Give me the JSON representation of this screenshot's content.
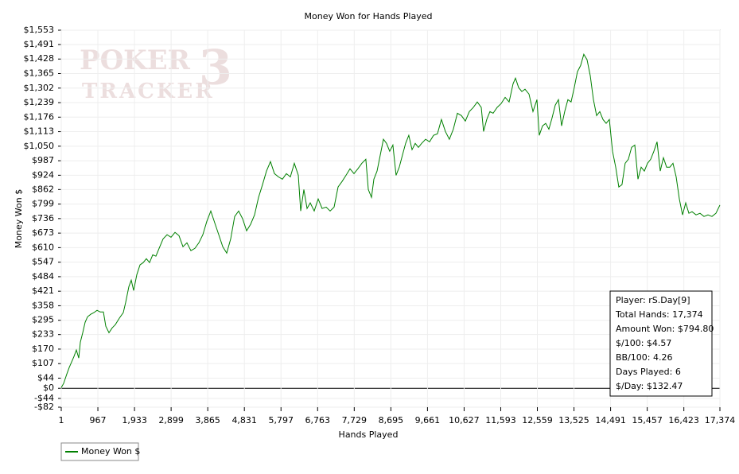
{
  "chart_data": {
    "type": "line",
    "title": "Money Won for Hands Played",
    "xlabel": "Hands Played",
    "ylabel": "Money Won $",
    "watermark": {
      "line1": "POKER",
      "line2": "TRACKER",
      "mark": "3"
    },
    "stats_box": [
      "Player: rS.Day[9]",
      "Total Hands: 17,374",
      "Amount Won: $794.80",
      "$/100: $4.57",
      "BB/100: 4.26",
      "Days Played: 6",
      "$/Day: $132.47"
    ],
    "xlim": [
      1,
      17374
    ],
    "ylim": [
      -82,
      1553
    ],
    "grid": true,
    "legend": "bottom-left",
    "xticks": [
      1,
      967,
      {
        "value": 1933,
        "label": "1,933"
      },
      {
        "value": 2899,
        "label": "2,899"
      },
      {
        "value": 3865,
        "label": "3,865"
      },
      {
        "value": 4831,
        "label": "4,831"
      },
      {
        "value": 5797,
        "label": "5,797"
      },
      {
        "value": 6763,
        "label": "6,763"
      },
      {
        "value": 7729,
        "label": "7,729"
      },
      {
        "value": 8695,
        "label": "8,695"
      },
      {
        "value": 9661,
        "label": "9,661"
      },
      {
        "value": 10627,
        "label": "10,627"
      },
      {
        "value": 11593,
        "label": "11,593"
      },
      {
        "value": 12559,
        "label": "12,559"
      },
      {
        "value": 13525,
        "label": "13,525"
      },
      {
        "value": 14491,
        "label": "14,491"
      },
      {
        "value": 15457,
        "label": "15,457"
      },
      {
        "value": 16423,
        "label": "16,423"
      },
      {
        "value": 17374,
        "label": "17,374"
      }
    ],
    "yticks": [
      {
        "value": 1553,
        "label": "$1,553"
      },
      {
        "value": 1491,
        "label": "$1,491"
      },
      {
        "value": 1428,
        "label": "$1,428"
      },
      {
        "value": 1365,
        "label": "$1,365"
      },
      {
        "value": 1302,
        "label": "$1,302"
      },
      {
        "value": 1239,
        "label": "$1,239"
      },
      {
        "value": 1176,
        "label": "$1,176"
      },
      {
        "value": 1113,
        "label": "$1,113"
      },
      {
        "value": 1050,
        "label": "$1,050"
      },
      {
        "value": 987,
        "label": "$987"
      },
      {
        "value": 924,
        "label": "$924"
      },
      {
        "value": 862,
        "label": "$862"
      },
      {
        "value": 799,
        "label": "$799"
      },
      {
        "value": 736,
        "label": "$736"
      },
      {
        "value": 673,
        "label": "$673"
      },
      {
        "value": 610,
        "label": "$610"
      },
      {
        "value": 547,
        "label": "$547"
      },
      {
        "value": 484,
        "label": "$484"
      },
      {
        "value": 421,
        "label": "$421"
      },
      {
        "value": 358,
        "label": "$358"
      },
      {
        "value": 295,
        "label": "$295"
      },
      {
        "value": 233,
        "label": "$233"
      },
      {
        "value": 170,
        "label": "$170"
      },
      {
        "value": 107,
        "label": "$107"
      },
      {
        "value": 44,
        "label": "$44"
      },
      {
        "value": 0,
        "label": "$0"
      },
      {
        "value": -44,
        "label": "-$44"
      },
      {
        "value": -82,
        "label": "-$82"
      }
    ],
    "x": [
      1,
      64,
      148,
      211,
      274,
      337,
      400,
      463,
      505,
      567,
      630,
      693,
      777,
      861,
      945,
      1029,
      1113,
      1176,
      1260,
      1344,
      1428,
      1533,
      1638,
      1700,
      1784,
      1847,
      1910,
      1994,
      2078,
      2162,
      2246,
      2330,
      2414,
      2498,
      2582,
      2686,
      2791,
      2896,
      3001,
      3106,
      3211,
      3316,
      3421,
      3526,
      3631,
      3735,
      3840,
      3945,
      4050,
      4155,
      4260,
      4365,
      4470,
      4575,
      4680,
      4785,
      4889,
      4994,
      5099,
      5204,
      5309,
      5414,
      5519,
      5624,
      5729,
      5834,
      5938,
      6043,
      6148,
      6253,
      6316,
      6400,
      6484,
      6568,
      6673,
      6778,
      6882,
      6987,
      7092,
      7197,
      7302,
      7407,
      7512,
      7617,
      7722,
      7826,
      7931,
      8036,
      8099,
      8183,
      8246,
      8330,
      8414,
      8498,
      8581,
      8665,
      8749,
      8833,
      8917,
      9001,
      9085,
      9169,
      9253,
      9337,
      9421,
      9505,
      9610,
      9715,
      9820,
      9924,
      10029,
      10134,
      10239,
      10344,
      10449,
      10554,
      10659,
      10764,
      10869,
      10974,
      11079,
      11141,
      11225,
      11309,
      11393,
      11498,
      11603,
      11708,
      11813,
      11918,
      11981,
      12065,
      12149,
      12233,
      12338,
      12443,
      12548,
      12610,
      12694,
      12778,
      12862,
      12946,
      13030,
      13114,
      13198,
      13281,
      13365,
      13449,
      13533,
      13617,
      13701,
      13785,
      13869,
      13953,
      14037,
      14121,
      14205,
      14289,
      14373,
      14457,
      14541,
      14625,
      14708,
      14792,
      14876,
      14960,
      15044,
      15128,
      15212,
      15296,
      15380,
      15464,
      15548,
      15632,
      15716,
      15800,
      15884,
      15968,
      16052,
      16136,
      16220,
      16304,
      16387,
      16471,
      16555,
      16639,
      16744,
      16849,
      16954,
      17059,
      17164,
      17269,
      17374
    ],
    "series": [
      {
        "name": "Money Won $",
        "color": "#008000",
        "values": [
          3,
          21,
          62,
          90,
          114,
          138,
          166,
          131,
          200,
          241,
          286,
          310,
          321,
          328,
          338,
          331,
          331,
          269,
          241,
          262,
          276,
          304,
          328,
          373,
          441,
          469,
          424,
          493,
          535,
          545,
          562,
          545,
          579,
          573,
          607,
          648,
          666,
          655,
          676,
          662,
          614,
          631,
          597,
          607,
          631,
          666,
          724,
          769,
          717,
          666,
          614,
          586,
          648,
          745,
          769,
          735,
          683,
          711,
          752,
          828,
          883,
          942,
          983,
          931,
          917,
          907,
          931,
          917,
          976,
          924,
          769,
          862,
          780,
          804,
          769,
          821,
          780,
          786,
          769,
          786,
          873,
          897,
          924,
          952,
          931,
          952,
          976,
          993,
          862,
          828,
          907,
          942,
          1011,
          1080,
          1062,
          1028,
          1055,
          924,
          959,
          1011,
          1062,
          1097,
          1035,
          1062,
          1045,
          1062,
          1080,
          1069,
          1097,
          1104,
          1166,
          1114,
          1080,
          1124,
          1193,
          1183,
          1159,
          1200,
          1218,
          1242,
          1218,
          1114,
          1166,
          1200,
          1193,
          1218,
          1235,
          1262,
          1242,
          1321,
          1345,
          1304,
          1287,
          1297,
          1276,
          1200,
          1252,
          1097,
          1138,
          1149,
          1124,
          1173,
          1228,
          1252,
          1138,
          1200,
          1252,
          1242,
          1304,
          1373,
          1400,
          1449,
          1425,
          1356,
          1252,
          1183,
          1200,
          1166,
          1149,
          1166,
          1028,
          959,
          873,
          883,
          976,
          993,
          1045,
          1055,
          907,
          959,
          942,
          976,
          993,
          1028,
          1069,
          942,
          1000,
          959,
          959,
          976,
          917,
          821,
          752,
          804,
          759,
          766,
          752,
          759,
          745,
          752,
          745,
          759,
          795
        ]
      }
    ]
  }
}
